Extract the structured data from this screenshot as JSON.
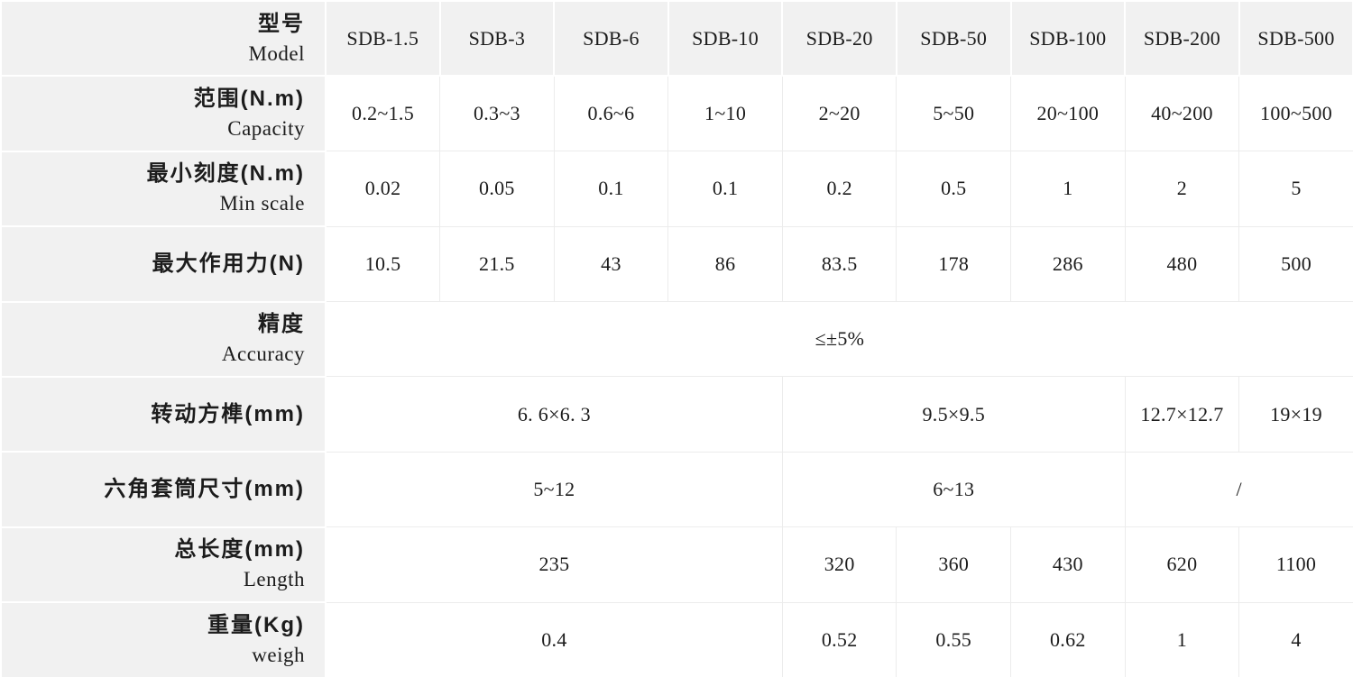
{
  "colors": {
    "band_background": "#f1f1f1",
    "grid_line": "#ececec",
    "text": "#1c1c1c"
  },
  "table": {
    "header": {
      "zh": "型号",
      "en": "Model"
    },
    "columns": [
      "SDB-1.5",
      "SDB-3",
      "SDB-6",
      "SDB-10",
      "SDB-20",
      "SDB-50",
      "SDB-100",
      "SDB-200",
      "SDB-500"
    ],
    "rows": [
      {
        "zh": "范围(N.m)",
        "en": "Capacity",
        "cells": [
          {
            "t": "0.2~1.5"
          },
          {
            "t": "0.3~3"
          },
          {
            "t": "0.6~6"
          },
          {
            "t": "1~10"
          },
          {
            "t": "2~20"
          },
          {
            "t": "5~50"
          },
          {
            "t": "20~100"
          },
          {
            "t": "40~200"
          },
          {
            "t": "100~500"
          }
        ]
      },
      {
        "zh": "最小刻度(N.m)",
        "en": "Min scale",
        "cells": [
          {
            "t": "0.02"
          },
          {
            "t": "0.05"
          },
          {
            "t": "0.1"
          },
          {
            "t": "0.1"
          },
          {
            "t": "0.2"
          },
          {
            "t": "0.5"
          },
          {
            "t": "1"
          },
          {
            "t": "2"
          },
          {
            "t": "5"
          }
        ]
      },
      {
        "zh": "最大作用力(N)",
        "en": "",
        "cells": [
          {
            "t": "10.5"
          },
          {
            "t": "21.5"
          },
          {
            "t": "43"
          },
          {
            "t": "86"
          },
          {
            "t": "83.5"
          },
          {
            "t": "178"
          },
          {
            "t": "286"
          },
          {
            "t": "480"
          },
          {
            "t": "500"
          }
        ]
      },
      {
        "zh": "精度",
        "en": "Accuracy",
        "cells": [
          {
            "t": "≤±5%"
          }
        ]
      },
      {
        "zh": "转动方榫(mm)",
        "en": "",
        "cells": [
          {
            "t": "6. 6×6. 3"
          },
          {
            "t": "9.5×9.5"
          },
          {
            "t": "12.7×12.7"
          },
          {
            "t": "19×19"
          }
        ]
      },
      {
        "zh": "六角套筒尺寸(mm)",
        "en": "",
        "cells": [
          {
            "t": "5~12"
          },
          {
            "t": "6~13"
          },
          {
            "t": "/"
          }
        ]
      },
      {
        "zh": "总长度(mm)",
        "en": "Length",
        "cells": [
          {
            "t": "235"
          },
          {
            "t": "320"
          },
          {
            "t": "360"
          },
          {
            "t": "430"
          },
          {
            "t": "620"
          },
          {
            "t": "1100"
          }
        ]
      },
      {
        "zh": "重量(Kg)",
        "en": "weigh",
        "cells": [
          {
            "t": "0.4"
          },
          {
            "t": "0.52"
          },
          {
            "t": "0.55"
          },
          {
            "t": "0.62"
          },
          {
            "t": "1"
          },
          {
            "t": "4"
          }
        ]
      }
    ]
  }
}
